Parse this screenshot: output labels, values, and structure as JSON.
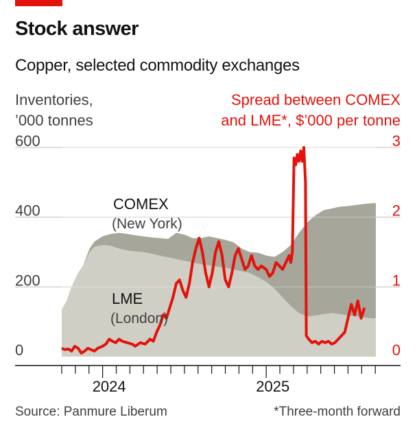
{
  "title": "Stock answer",
  "subtitle": "Copper, selected commodity exchanges",
  "left_axis_label": [
    "Inventories,",
    "’000 tonnes"
  ],
  "right_axis_label": [
    "Spread between COMEX",
    "and LME*, $’000 per tonne"
  ],
  "source": "Source: Panmure Liberum",
  "footnote": "*Three-month forward",
  "colors": {
    "accent": "#e3120b",
    "comex_area": "#a6a69a",
    "lme_area": "#cfcfc6",
    "spread_line": "#e3120b",
    "gridline": "#bdbdb6"
  },
  "chart_data": {
    "type": "area",
    "x_label_ticks": [
      "2024",
      "2025"
    ],
    "left_axis": {
      "ticks": [
        "0",
        "200",
        "400",
        "600"
      ],
      "range": [
        0,
        600
      ]
    },
    "right_axis": {
      "ticks": [
        "0",
        "1",
        "2",
        "3"
      ],
      "range": [
        0,
        3
      ]
    },
    "x_range": [
      2023.75,
      2025.67
    ],
    "series": [
      {
        "name": "LME",
        "sublabel": "(London)",
        "kind": "area",
        "axis": "left",
        "points": [
          [
            2023.75,
            135
          ],
          [
            2023.78,
            160
          ],
          [
            2023.81,
            200
          ],
          [
            2023.85,
            240
          ],
          [
            2023.88,
            260
          ],
          [
            2023.92,
            300
          ],
          [
            2023.95,
            315
          ],
          [
            2024.0,
            320
          ],
          [
            2024.05,
            318
          ],
          [
            2024.1,
            310
          ],
          [
            2024.15,
            305
          ],
          [
            2024.2,
            302
          ],
          [
            2024.25,
            300
          ],
          [
            2024.3,
            295
          ],
          [
            2024.35,
            290
          ],
          [
            2024.4,
            285
          ],
          [
            2024.45,
            280
          ],
          [
            2024.5,
            275
          ],
          [
            2024.55,
            270
          ],
          [
            2024.6,
            265
          ],
          [
            2024.65,
            262
          ],
          [
            2024.7,
            258
          ],
          [
            2024.75,
            255
          ],
          [
            2024.8,
            250
          ],
          [
            2024.85,
            245
          ],
          [
            2024.9,
            240
          ],
          [
            2024.95,
            228
          ],
          [
            2025.0,
            215
          ],
          [
            2025.05,
            195
          ],
          [
            2025.1,
            170
          ],
          [
            2025.15,
            145
          ],
          [
            2025.2,
            125
          ],
          [
            2025.25,
            115
          ],
          [
            2025.3,
            118
          ],
          [
            2025.35,
            122
          ],
          [
            2025.4,
            125
          ],
          [
            2025.45,
            122
          ],
          [
            2025.5,
            118
          ],
          [
            2025.55,
            115
          ],
          [
            2025.6,
            112
          ],
          [
            2025.65,
            110
          ],
          [
            2025.67,
            110
          ]
        ]
      },
      {
        "name": "COMEX",
        "sublabel": "(New York)",
        "kind": "area",
        "axis": "left",
        "points": [
          [
            2023.75,
            135
          ],
          [
            2023.78,
            160
          ],
          [
            2023.81,
            200
          ],
          [
            2023.85,
            240
          ],
          [
            2023.88,
            260
          ],
          [
            2023.92,
            310
          ],
          [
            2023.95,
            330
          ],
          [
            2024.0,
            345
          ],
          [
            2024.05,
            352
          ],
          [
            2024.1,
            355
          ],
          [
            2024.15,
            352
          ],
          [
            2024.2,
            348
          ],
          [
            2024.25,
            345
          ],
          [
            2024.3,
            342
          ],
          [
            2024.35,
            340
          ],
          [
            2024.4,
            338
          ],
          [
            2024.45,
            355
          ],
          [
            2024.5,
            350
          ],
          [
            2024.55,
            340
          ],
          [
            2024.6,
            340
          ],
          [
            2024.65,
            345
          ],
          [
            2024.7,
            340
          ],
          [
            2024.75,
            335
          ],
          [
            2024.8,
            328
          ],
          [
            2024.85,
            310
          ],
          [
            2024.9,
            300
          ],
          [
            2024.95,
            298
          ],
          [
            2025.0,
            290
          ],
          [
            2025.05,
            286
          ],
          [
            2025.1,
            300
          ],
          [
            2025.15,
            320
          ],
          [
            2025.2,
            355
          ],
          [
            2025.25,
            385
          ],
          [
            2025.3,
            405
          ],
          [
            2025.35,
            420
          ],
          [
            2025.4,
            425
          ],
          [
            2025.45,
            430
          ],
          [
            2025.5,
            432
          ],
          [
            2025.55,
            435
          ],
          [
            2025.6,
            438
          ],
          [
            2025.65,
            440
          ],
          [
            2025.67,
            440
          ]
        ]
      },
      {
        "name": "Spread between COMEX and LME",
        "kind": "line",
        "axis": "right",
        "points": [
          [
            2023.75,
            0.12
          ],
          [
            2023.77,
            0.1
          ],
          [
            2023.79,
            0.11
          ],
          [
            2023.81,
            0.08
          ],
          [
            2023.83,
            0.15
          ],
          [
            2023.85,
            0.12
          ],
          [
            2023.87,
            0.05
          ],
          [
            2023.89,
            0.08
          ],
          [
            2023.91,
            0.12
          ],
          [
            2023.93,
            0.1
          ],
          [
            2023.95,
            0.08
          ],
          [
            2023.97,
            0.12
          ],
          [
            2024.0,
            0.15
          ],
          [
            2024.02,
            0.18
          ],
          [
            2024.04,
            0.25
          ],
          [
            2024.06,
            0.22
          ],
          [
            2024.08,
            0.2
          ],
          [
            2024.1,
            0.25
          ],
          [
            2024.12,
            0.22
          ],
          [
            2024.15,
            0.2
          ],
          [
            2024.18,
            0.18
          ],
          [
            2024.2,
            0.15
          ],
          [
            2024.23,
            0.2
          ],
          [
            2024.26,
            0.18
          ],
          [
            2024.29,
            0.25
          ],
          [
            2024.31,
            0.22
          ],
          [
            2024.33,
            0.35
          ],
          [
            2024.35,
            0.45
          ],
          [
            2024.37,
            0.6
          ],
          [
            2024.39,
            0.55
          ],
          [
            2024.41,
            0.7
          ],
          [
            2024.43,
            0.85
          ],
          [
            2024.45,
            1.05
          ],
          [
            2024.47,
            1.1
          ],
          [
            2024.49,
            0.95
          ],
          [
            2024.51,
            0.85
          ],
          [
            2024.53,
            1.05
          ],
          [
            2024.55,
            1.35
          ],
          [
            2024.57,
            1.55
          ],
          [
            2024.59,
            1.7
          ],
          [
            2024.61,
            1.5
          ],
          [
            2024.63,
            1.2
          ],
          [
            2024.65,
            1.0
          ],
          [
            2024.67,
            1.2
          ],
          [
            2024.69,
            1.5
          ],
          [
            2024.71,
            1.65
          ],
          [
            2024.73,
            1.45
          ],
          [
            2024.75,
            1.1
          ],
          [
            2024.77,
            1.0
          ],
          [
            2024.79,
            1.2
          ],
          [
            2024.81,
            1.45
          ],
          [
            2024.83,
            1.55
          ],
          [
            2024.85,
            1.4
          ],
          [
            2024.87,
            1.25
          ],
          [
            2024.89,
            1.3
          ],
          [
            2024.91,
            1.45
          ],
          [
            2024.93,
            1.3
          ],
          [
            2024.95,
            1.25
          ],
          [
            2024.97,
            1.3
          ],
          [
            2025.0,
            1.25
          ],
          [
            2025.02,
            1.15
          ],
          [
            2025.04,
            1.2
          ],
          [
            2025.06,
            1.35
          ],
          [
            2025.08,
            1.3
          ],
          [
            2025.1,
            1.25
          ],
          [
            2025.12,
            1.35
          ],
          [
            2025.14,
            1.45
          ],
          [
            2025.15,
            1.35
          ],
          [
            2025.16,
            1.5
          ],
          [
            2025.17,
            2.85
          ],
          [
            2025.18,
            2.75
          ],
          [
            2025.19,
            2.9
          ],
          [
            2025.2,
            2.8
          ],
          [
            2025.21,
            2.95
          ],
          [
            2025.22,
            2.8
          ],
          [
            2025.23,
            3.0
          ],
          [
            2025.24,
            2.5
          ],
          [
            2025.245,
            0.3
          ],
          [
            2025.26,
            0.25
          ],
          [
            2025.28,
            0.2
          ],
          [
            2025.3,
            0.22
          ],
          [
            2025.32,
            0.18
          ],
          [
            2025.34,
            0.22
          ],
          [
            2025.36,
            0.2
          ],
          [
            2025.38,
            0.22
          ],
          [
            2025.4,
            0.18
          ],
          [
            2025.42,
            0.2
          ],
          [
            2025.44,
            0.25
          ],
          [
            2025.46,
            0.3
          ],
          [
            2025.48,
            0.35
          ],
          [
            2025.5,
            0.55
          ],
          [
            2025.52,
            0.75
          ],
          [
            2025.54,
            0.6
          ],
          [
            2025.56,
            0.8
          ],
          [
            2025.58,
            0.55
          ],
          [
            2025.6,
            0.7
          ]
        ]
      }
    ],
    "legend": "direct labels on areas",
    "grid": true
  }
}
